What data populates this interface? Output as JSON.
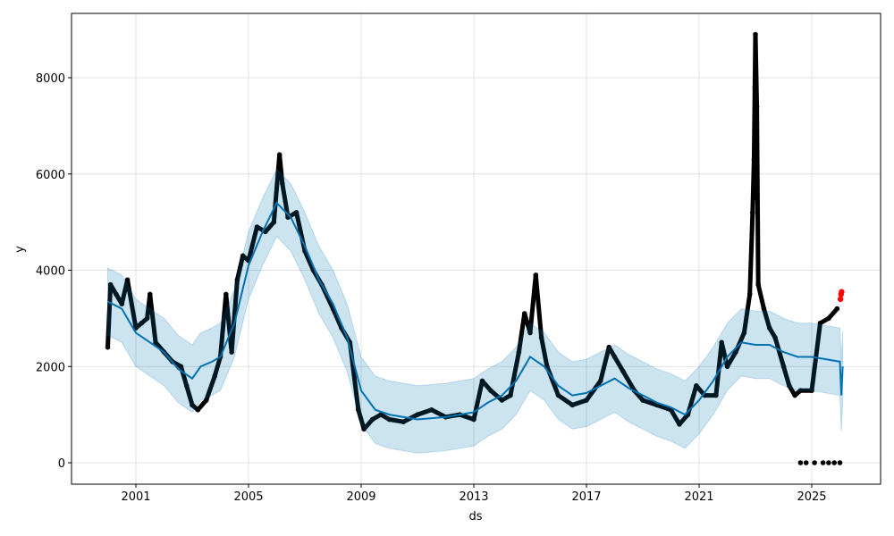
{
  "chart_data": {
    "type": "scatter",
    "title": "",
    "xlabel": "ds",
    "ylabel": "y",
    "xlim": [
      1999.0,
      2027.6
    ],
    "ylim": [
      -450,
      9400
    ],
    "grid": true,
    "xticks": [
      2001,
      2005,
      2009,
      2013,
      2017,
      2021,
      2025
    ],
    "yticks": [
      0,
      2000,
      4000,
      6000,
      8000
    ],
    "colors": {
      "observed": "#000000",
      "forecast": "#0072B2",
      "interval": "#0072B2",
      "highlight": "#ff0000"
    },
    "forecast": {
      "x": [
        2000.0,
        2000.5,
        2001.0,
        2001.5,
        2002.0,
        2002.5,
        2003.0,
        2003.3,
        2003.7,
        2004.0,
        2004.5,
        2005.0,
        2005.5,
        2006.0,
        2006.5,
        2007.0,
        2007.5,
        2008.0,
        2008.5,
        2009.0,
        2009.5,
        2010.0,
        2011.0,
        2012.0,
        2013.0,
        2013.5,
        2014.0,
        2014.5,
        2015.0,
        2015.5,
        2016.0,
        2016.5,
        2017.0,
        2017.5,
        2018.0,
        2018.5,
        2019.0,
        2019.5,
        2020.0,
        2020.5,
        2021.0,
        2021.5,
        2022.0,
        2022.5,
        2023.0,
        2023.5,
        2024.0,
        2024.5,
        2025.0,
        2025.5,
        2026.0,
        2026.05,
        2026.1
      ],
      "yhat": [
        3350,
        3200,
        2700,
        2500,
        2300,
        1950,
        1750,
        2000,
        2100,
        2200,
        2900,
        4100,
        4800,
        5400,
        5100,
        4500,
        3800,
        3300,
        2600,
        1500,
        1100,
        1000,
        900,
        950,
        1050,
        1250,
        1400,
        1700,
        2200,
        2000,
        1600,
        1400,
        1450,
        1600,
        1750,
        1550,
        1400,
        1250,
        1150,
        1000,
        1300,
        1700,
        2200,
        2500,
        2450,
        2450,
        2300,
        2200,
        2200,
        2150,
        2100,
        1400,
        2000
      ],
      "yhat_lower": [
        2650,
        2500,
        2000,
        1800,
        1600,
        1250,
        1050,
        1300,
        1400,
        1500,
        2200,
        3400,
        4100,
        4700,
        4400,
        3800,
        3100,
        2600,
        1900,
        800,
        400,
        300,
        200,
        250,
        350,
        550,
        700,
        1000,
        1500,
        1300,
        900,
        700,
        750,
        900,
        1050,
        850,
        700,
        550,
        450,
        300,
        600,
        1000,
        1500,
        1800,
        1750,
        1750,
        1600,
        1500,
        1500,
        1450,
        1400,
        650,
        1300
      ],
      "yhat_upper": [
        4050,
        3900,
        3400,
        3200,
        3000,
        2650,
        2450,
        2700,
        2800,
        2900,
        3600,
        4800,
        5500,
        6100,
        5800,
        5200,
        4500,
        4000,
        3300,
        2200,
        1800,
        1700,
        1600,
        1650,
        1750,
        1950,
        2100,
        2400,
        2900,
        2700,
        2300,
        2100,
        2150,
        2300,
        2450,
        2250,
        2100,
        1950,
        1850,
        1700,
        2000,
        2400,
        2900,
        3200,
        3150,
        3150,
        3000,
        2900,
        2900,
        2850,
        2800,
        2100,
        2750
      ]
    },
    "observed": {
      "x": [
        2000.0,
        2000.1,
        2000.3,
        2000.5,
        2000.7,
        2001.0,
        2001.2,
        2001.4,
        2001.5,
        2001.7,
        2002.0,
        2002.3,
        2002.6,
        2002.8,
        2003.0,
        2003.2,
        2003.5,
        2003.8,
        2004.0,
        2004.2,
        2004.4,
        2004.6,
        2004.8,
        2005.0,
        2005.3,
        2005.6,
        2005.9,
        2006.1,
        2006.2,
        2006.4,
        2006.7,
        2007.0,
        2007.3,
        2007.6,
        2008.0,
        2008.3,
        2008.6,
        2008.9,
        2009.1,
        2009.4,
        2009.7,
        2010.0,
        2010.5,
        2011.0,
        2011.5,
        2012.0,
        2012.5,
        2013.0,
        2013.3,
        2013.6,
        2014.0,
        2014.3,
        2014.6,
        2014.8,
        2015.0,
        2015.2,
        2015.4,
        2015.6,
        2016.0,
        2016.5,
        2017.0,
        2017.5,
        2017.8,
        2018.0,
        2018.3,
        2018.7,
        2019.0,
        2019.5,
        2020.0,
        2020.3,
        2020.6,
        2020.9,
        2021.2,
        2021.6,
        2021.8,
        2022.0,
        2022.3,
        2022.6,
        2022.8,
        2022.9,
        2022.95,
        2023.0,
        2023.05,
        2023.1,
        2023.3,
        2023.5,
        2023.7,
        2024.0,
        2024.2,
        2024.4,
        2024.6,
        2025.0,
        2025.3,
        2025.6,
        2025.9
      ],
      "y": [
        2400,
        3700,
        3500,
        3300,
        3800,
        2800,
        2900,
        3000,
        3500,
        2500,
        2300,
        2100,
        2000,
        1600,
        1200,
        1100,
        1300,
        1800,
        2200,
        3500,
        2300,
        3800,
        4300,
        4200,
        4900,
        4800,
        5000,
        6400,
        5800,
        5100,
        5200,
        4400,
        4000,
        3700,
        3200,
        2800,
        2500,
        1100,
        700,
        900,
        1000,
        900,
        850,
        1000,
        1100,
        950,
        1000,
        900,
        1700,
        1500,
        1300,
        1400,
        2300,
        3100,
        2700,
        3900,
        2600,
        2000,
        1400,
        1200,
        1300,
        1700,
        2400,
        2200,
        1900,
        1500,
        1300,
        1200,
        1100,
        800,
        1000,
        1600,
        1400,
        1400,
        2500,
        2000,
        2300,
        2700,
        3500,
        5200,
        6300,
        8900,
        7400,
        3700,
        3200,
        2800,
        2600,
        2000,
        1600,
        1400,
        1500,
        1500,
        2900,
        3000,
        3200
      ]
    },
    "observed_outliers": {
      "x": [
        2022.98,
        2023.0,
        2023.02,
        2023.04,
        2024.6,
        2024.8,
        2025.1,
        2025.4,
        2025.6,
        2025.8,
        2026.0
      ],
      "y": [
        7800,
        6700,
        6000,
        5500,
        0,
        0,
        0,
        0,
        0,
        0,
        0
      ]
    },
    "highlighted": {
      "x": [
        2026.02,
        2026.04,
        2026.06
      ],
      "y": [
        3400,
        3500,
        3550
      ]
    }
  }
}
